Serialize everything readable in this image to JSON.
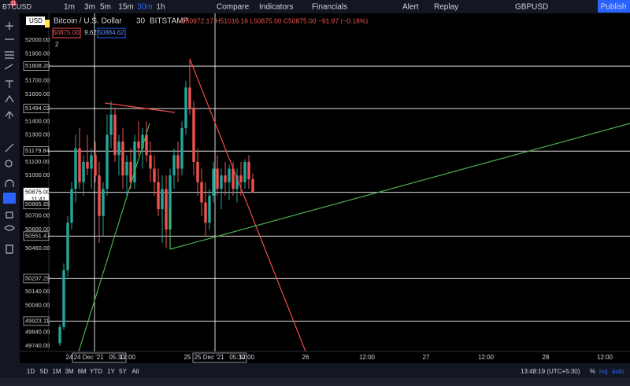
{
  "toolbar": {
    "symbol": "BTCUSD",
    "badge": "11",
    "intervals": [
      "1m",
      "3m",
      "5m",
      "15m",
      "30m",
      "1h"
    ],
    "compare": "Compare",
    "indicators": "Indicators",
    "financials": "Financials",
    "alert": "Alert",
    "replay": "Replay",
    "watch_symbol": "GBPUSD",
    "publish": "Publish"
  },
  "legend": {
    "title": "Bitcoin / U.S. Dollar",
    "interval": "30",
    "exchange": "BITSTAMP",
    "ohlc": "O50972.17 H51016.16 L50875.00 C50875.00 −91.97 (−0.18%)",
    "bid": "50875.00",
    "spread": "9.62",
    "ask": "50884.62",
    "collapsed": "2",
    "currency": "USD"
  },
  "chart_data": {
    "type": "candlestick",
    "open": [
      49760,
      49880,
      50300,
      50650,
      50900,
      51200,
      50950,
      51100,
      51050,
      51150,
      51000,
      50700,
      50900,
      51300,
      51450,
      51150,
      51250,
      51000,
      51100,
      50950,
      51250,
      51200,
      51300,
      51150,
      51050,
      50950,
      50750,
      50900,
      50600,
      51000,
      51150,
      51050,
      51350,
      51650,
      51500,
      51100,
      50950,
      50800,
      50650,
      50850,
      51050,
      50900,
      51000,
      50950,
      51050,
      50900,
      51000,
      50950,
      51100,
      50972.17
    ],
    "high": [
      49900,
      50350,
      50700,
      50950,
      51300,
      51350,
      51150,
      51300,
      51200,
      51250,
      51100,
      50950,
      51450,
      51550,
      51500,
      51300,
      51350,
      51150,
      51200,
      51300,
      51400,
      51350,
      51400,
      51250,
      51150,
      51050,
      51000,
      51000,
      51050,
      51200,
      51250,
      51400,
      51700,
      51850,
      51550,
      51200,
      51050,
      50950,
      50900,
      51100,
      51150,
      51050,
      51100,
      51080,
      51100,
      51050,
      51100,
      51120,
      51150,
      51016.16
    ],
    "low": [
      49740,
      49860,
      50250,
      50600,
      50800,
      50900,
      50850,
      51000,
      50900,
      50950,
      50500,
      50550,
      50850,
      51200,
      51100,
      51000,
      50900,
      50850,
      50900,
      50900,
      51150,
      51050,
      51100,
      50950,
      50850,
      50700,
      50500,
      50460,
      50550,
      50900,
      50950,
      51000,
      51300,
      51450,
      51000,
      50850,
      50700,
      50550,
      50600,
      50800,
      50850,
      50750,
      50850,
      50820,
      50850,
      50800,
      50850,
      50900,
      50900,
      50875
    ],
    "close": [
      49880,
      50300,
      50650,
      50900,
      51200,
      50950,
      51100,
      51050,
      51150,
      51000,
      50700,
      50900,
      51300,
      51450,
      51150,
      51250,
      51000,
      51100,
      50950,
      51250,
      51200,
      51300,
      51150,
      51050,
      50950,
      50750,
      50900,
      50600,
      51000,
      51150,
      51050,
      51350,
      51650,
      51500,
      51100,
      50950,
      50800,
      50650,
      50850,
      51050,
      50900,
      51000,
      50950,
      51050,
      50900,
      51000,
      50950,
      51100,
      50972.17,
      50875
    ],
    "up_color": "#26a69a",
    "down_color": "#ef5350",
    "ylim": [
      49699,
      52198
    ],
    "yticks": [
      {
        "value": 52000,
        "label": "52000.00"
      },
      {
        "value": 51900,
        "label": "51900.00"
      },
      {
        "value": 51808.2,
        "label": "51808.20"
      },
      {
        "value": 51700,
        "label": "51700.00"
      },
      {
        "value": 51600,
        "label": "51600.00"
      },
      {
        "value": 51494.02,
        "label": "51494.02"
      },
      {
        "value": 51400,
        "label": "51400.00"
      },
      {
        "value": 51300,
        "label": "51300.00"
      },
      {
        "value": 51179.84,
        "label": "51179.84"
      },
      {
        "value": 51100,
        "label": "51100.00"
      },
      {
        "value": 51000,
        "label": "51000.00"
      },
      {
        "value": 50875,
        "label": "50875.00"
      },
      {
        "value": 50865.65,
        "label": "50865.65"
      },
      {
        "value": 50700,
        "label": "50700.00"
      },
      {
        "value": 50600,
        "label": "50600.00"
      },
      {
        "value": 50551.47,
        "label": "50551.47"
      },
      {
        "value": 50460,
        "label": "50460.00"
      },
      {
        "value": 50237.29,
        "label": "50237.29"
      },
      {
        "value": 50140,
        "label": "50140.00"
      },
      {
        "value": 50040,
        "label": "50040.00"
      },
      {
        "value": 49923.11,
        "label": "49923.11"
      },
      {
        "value": 49840,
        "label": "49840.00"
      },
      {
        "value": 49740,
        "label": "49740.00"
      }
    ],
    "countdown": "11:41"
  },
  "time_axis": [
    "24",
    "24 Dec '21   05:30",
    "12:00",
    "25",
    "25 Dec '21   05:30",
    "12:00",
    "26",
    "12:00",
    "27",
    "12:00",
    "28",
    "12:00"
  ],
  "footer": {
    "ranges": [
      "1D",
      "5D",
      "1M",
      "3M",
      "6M",
      "YTD",
      "1Y",
      "5Y",
      "All"
    ],
    "clock": "13:48:19 (UTC+5:30)",
    "percent": "%",
    "log": "log",
    "auto": "auto"
  }
}
